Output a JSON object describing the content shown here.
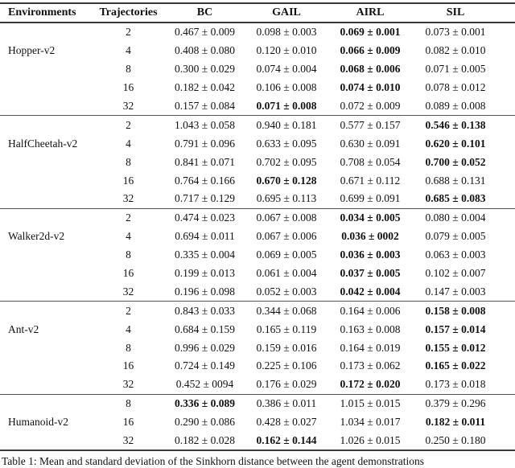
{
  "table": {
    "columns": [
      "Environments",
      "Trajectories",
      "BC",
      "GAIL",
      "AIRL",
      "SIL"
    ],
    "method_keys": [
      "bc",
      "gail",
      "airl",
      "sil"
    ],
    "groups": [
      {
        "environment": "Hopper-v2",
        "label_row_index": 1,
        "rows": [
          {
            "trajectories": "2",
            "values": [
              {
                "text": "0.467 ± 0.009",
                "bold": false
              },
              {
                "text": "0.098 ± 0.003",
                "bold": false
              },
              {
                "text": "0.069 ± 0.001",
                "bold": true
              },
              {
                "text": "0.073 ± 0.001",
                "bold": false
              }
            ]
          },
          {
            "trajectories": "4",
            "values": [
              {
                "text": "0.408 ± 0.080",
                "bold": false
              },
              {
                "text": "0.120 ± 0.010",
                "bold": false
              },
              {
                "text": "0.066 ± 0.009",
                "bold": true
              },
              {
                "text": "0.082 ± 0.010",
                "bold": false
              }
            ]
          },
          {
            "trajectories": "8",
            "values": [
              {
                "text": "0.300 ± 0.029",
                "bold": false
              },
              {
                "text": "0.074 ± 0.004",
                "bold": false
              },
              {
                "text": "0.068 ± 0.006",
                "bold": true
              },
              {
                "text": "0.071 ± 0.005",
                "bold": false
              }
            ]
          },
          {
            "trajectories": "16",
            "values": [
              {
                "text": "0.182 ± 0.042",
                "bold": false
              },
              {
                "text": "0.106 ± 0.008",
                "bold": false
              },
              {
                "text": "0.074 ± 0.010",
                "bold": true
              },
              {
                "text": "0.078 ± 0.012",
                "bold": false
              }
            ]
          },
          {
            "trajectories": "32",
            "values": [
              {
                "text": "0.157 ± 0.084",
                "bold": false
              },
              {
                "text": "0.071 ± 0.008",
                "bold": true
              },
              {
                "text": "0.072 ± 0.009",
                "bold": false
              },
              {
                "text": "0.089 ± 0.008",
                "bold": false
              }
            ]
          }
        ]
      },
      {
        "environment": "HalfCheetah-v2",
        "label_row_index": 1,
        "rows": [
          {
            "trajectories": "2",
            "values": [
              {
                "text": "1.043 ± 0.058",
                "bold": false
              },
              {
                "text": "0.940 ± 0.181",
                "bold": false
              },
              {
                "text": "0.577 ± 0.157",
                "bold": false
              },
              {
                "text": "0.546 ± 0.138",
                "bold": true
              }
            ]
          },
          {
            "trajectories": "4",
            "values": [
              {
                "text": "0.791 ± 0.096",
                "bold": false
              },
              {
                "text": "0.633 ± 0.095",
                "bold": false
              },
              {
                "text": "0.630 ± 0.091",
                "bold": false
              },
              {
                "text": "0.620 ± 0.101",
                "bold": true
              }
            ]
          },
          {
            "trajectories": "8",
            "values": [
              {
                "text": "0.841 ± 0.071",
                "bold": false
              },
              {
                "text": "0.702 ± 0.095",
                "bold": false
              },
              {
                "text": "0.708 ± 0.054",
                "bold": false
              },
              {
                "text": "0.700 ± 0.052",
                "bold": true
              }
            ]
          },
          {
            "trajectories": "16",
            "values": [
              {
                "text": "0.764 ± 0.166",
                "bold": false
              },
              {
                "text": "0.670 ± 0.128",
                "bold": true
              },
              {
                "text": "0.671 ± 0.112",
                "bold": false
              },
              {
                "text": "0.688 ± 0.131",
                "bold": false
              }
            ]
          },
          {
            "trajectories": "32",
            "values": [
              {
                "text": "0.717 ± 0.129",
                "bold": false
              },
              {
                "text": "0.695 ± 0.113",
                "bold": false
              },
              {
                "text": "0.699 ± 0.091",
                "bold": false
              },
              {
                "text": "0.685 ± 0.083",
                "bold": true
              }
            ]
          }
        ]
      },
      {
        "environment": "Walker2d-v2",
        "label_row_index": 1,
        "rows": [
          {
            "trajectories": "2",
            "values": [
              {
                "text": "0.474 ± 0.023",
                "bold": false
              },
              {
                "text": "0.067 ± 0.008",
                "bold": false
              },
              {
                "text": "0.034 ± 0.005",
                "bold": true
              },
              {
                "text": "0.080 ± 0.004",
                "bold": false
              }
            ]
          },
          {
            "trajectories": "4",
            "values": [
              {
                "text": "0.694 ± 0.011",
                "bold": false
              },
              {
                "text": "0.067 ± 0.006",
                "bold": false
              },
              {
                "text": "0.036 ± 0002",
                "bold": true
              },
              {
                "text": "0.079 ± 0.005",
                "bold": false
              }
            ]
          },
          {
            "trajectories": "8",
            "values": [
              {
                "text": "0.335 ± 0.004",
                "bold": false
              },
              {
                "text": "0.069 ± 0.005",
                "bold": false
              },
              {
                "text": "0.036 ± 0.003",
                "bold": true
              },
              {
                "text": "0.063 ± 0.003",
                "bold": false
              }
            ]
          },
          {
            "trajectories": "16",
            "values": [
              {
                "text": "0.199 ± 0.013",
                "bold": false
              },
              {
                "text": "0.061 ± 0.004",
                "bold": false
              },
              {
                "text": "0.037 ± 0.005",
                "bold": true
              },
              {
                "text": "0.102 ± 0.007",
                "bold": false
              }
            ]
          },
          {
            "trajectories": "32",
            "values": [
              {
                "text": "0.196 ± 0.098",
                "bold": false
              },
              {
                "text": "0.052 ± 0.003",
                "bold": false
              },
              {
                "text": "0.042 ± 0.004",
                "bold": true
              },
              {
                "text": "0.147 ± 0.003",
                "bold": false
              }
            ]
          }
        ]
      },
      {
        "environment": "Ant-v2",
        "label_row_index": 1,
        "rows": [
          {
            "trajectories": "2",
            "values": [
              {
                "text": "0.843 ± 0.033",
                "bold": false
              },
              {
                "text": "0.344 ± 0.068",
                "bold": false
              },
              {
                "text": "0.164 ± 0.006",
                "bold": false
              },
              {
                "text": "0.158 ± 0.008",
                "bold": true
              }
            ]
          },
          {
            "trajectories": "4",
            "values": [
              {
                "text": "0.684 ± 0.159",
                "bold": false
              },
              {
                "text": "0.165 ± 0.119",
                "bold": false
              },
              {
                "text": "0.163 ± 0.008",
                "bold": false
              },
              {
                "text": "0.157 ± 0.014",
                "bold": true
              }
            ]
          },
          {
            "trajectories": "8",
            "values": [
              {
                "text": "0.996 ± 0.029",
                "bold": false
              },
              {
                "text": "0.159 ± 0.016",
                "bold": false
              },
              {
                "text": "0.164 ± 0.019",
                "bold": false
              },
              {
                "text": "0.155 ± 0.012",
                "bold": true
              }
            ]
          },
          {
            "trajectories": "16",
            "values": [
              {
                "text": "0.724 ± 0.149",
                "bold": false
              },
              {
                "text": "0.225 ± 0.106",
                "bold": false
              },
              {
                "text": "0.173 ± 0.062",
                "bold": false
              },
              {
                "text": "0.165 ± 0.022",
                "bold": true
              }
            ]
          },
          {
            "trajectories": "32",
            "values": [
              {
                "text": "0.452 ± 0094",
                "bold": false
              },
              {
                "text": "0.176 ± 0.029",
                "bold": false
              },
              {
                "text": "0.172 ± 0.020",
                "bold": true
              },
              {
                "text": "0.173 ± 0.018",
                "bold": false
              }
            ]
          }
        ]
      },
      {
        "environment": "Humanoid-v2",
        "label_row_index": 1,
        "rows": [
          {
            "trajectories": "8",
            "values": [
              {
                "text": "0.336 ± 0.089",
                "bold": true
              },
              {
                "text": "0.386 ± 0.011",
                "bold": false
              },
              {
                "text": "1.015 ± 0.015",
                "bold": false
              },
              {
                "text": "0.379 ± 0.296",
                "bold": false
              }
            ]
          },
          {
            "trajectories": "16",
            "values": [
              {
                "text": "0.290 ± 0.086",
                "bold": false
              },
              {
                "text": "0.428 ± 0.027",
                "bold": false
              },
              {
                "text": "1.034 ± 0.017",
                "bold": false
              },
              {
                "text": "0.182 ± 0.011",
                "bold": true
              }
            ]
          },
          {
            "trajectories": "32",
            "values": [
              {
                "text": "0.182 ± 0.028",
                "bold": false
              },
              {
                "text": "0.162 ± 0.144",
                "bold": true
              },
              {
                "text": "1.026 ± 0.015",
                "bold": false
              },
              {
                "text": "0.250 ± 0.180",
                "bold": false
              }
            ]
          }
        ]
      }
    ]
  },
  "caption": {
    "text": "Table 1: Mean and standard deviation of the Sinkhorn distance between the agent demonstrations"
  }
}
